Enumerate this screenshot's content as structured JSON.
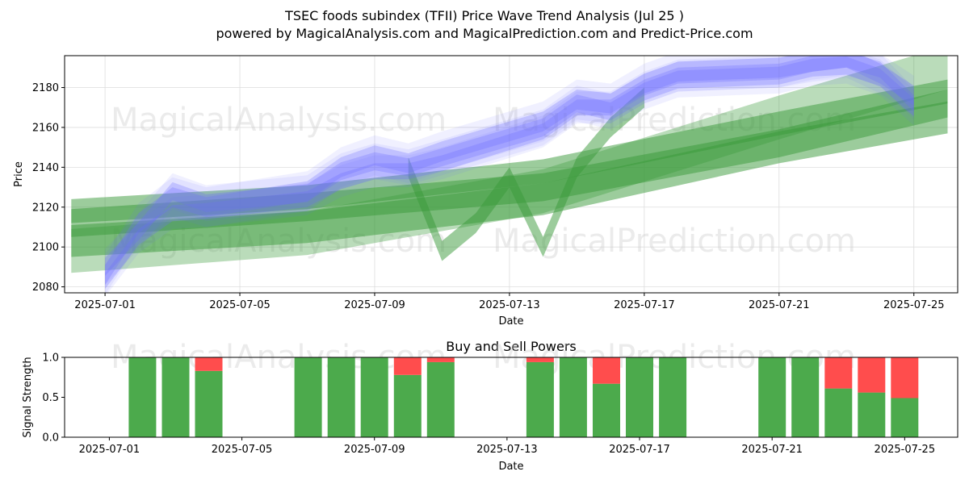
{
  "title": "TSEC foods subindex (TFII) Price Wave Trend Analysis (Jul 25 )",
  "subtitle": "powered by MagicalAnalysis.com and MagicalPrediction.com and Predict-Price.com",
  "watermarks": [
    "MagicalAnalysis.com",
    "MagicalPrediction.com"
  ],
  "colors": {
    "band_blue": "#6a6aff",
    "band_green": "#3a9a3a",
    "buy": "#4caa4c",
    "sell": "#ff4d4d",
    "grid": "#dddddd"
  },
  "chart_data": [
    {
      "type": "area",
      "name": "price-wave",
      "xlabel": "Date",
      "ylabel": "Price",
      "x_ticks": [
        "2025-07-01",
        "2025-07-05",
        "2025-07-09",
        "2025-07-13",
        "2025-07-17",
        "2025-07-21",
        "2025-07-25"
      ],
      "y_ticks": [
        2080,
        2100,
        2120,
        2140,
        2160,
        2180
      ],
      "xlim": [
        "2025-06-29.8",
        "2025-07-26.3"
      ],
      "ylim": [
        2077,
        2196
      ],
      "grid": true,
      "blue_bands": [
        {
          "x": [
            "2025-07-01",
            "2025-07-02",
            "2025-07-03",
            "2025-07-04",
            "2025-07-07",
            "2025-07-08",
            "2025-07-09",
            "2025-07-10",
            "2025-07-11",
            "2025-07-14",
            "2025-07-15",
            "2025-07-16",
            "2025-07-17",
            "2025-07-18",
            "2025-07-21",
            "2025-07-22",
            "2025-07-23",
            "2025-07-24",
            "2025-07-25"
          ],
          "center": [
            2083,
            2105,
            2117,
            2118,
            2124,
            2133,
            2138,
            2138,
            2142,
            2158,
            2170,
            2170,
            2180,
            2186,
            2188,
            2192,
            2194,
            2189,
            2172
          ],
          "width": 8
        },
        {
          "x": [
            "2025-07-01",
            "2025-07-02",
            "2025-07-03",
            "2025-07-04",
            "2025-07-07",
            "2025-07-08",
            "2025-07-09",
            "2025-07-10",
            "2025-07-11",
            "2025-07-14",
            "2025-07-15",
            "2025-07-16",
            "2025-07-17",
            "2025-07-18",
            "2025-07-21",
            "2025-07-22",
            "2025-07-23",
            "2025-07-24",
            "2025-07-25"
          ],
          "center": [
            2086,
            2112,
            2125,
            2120,
            2128,
            2140,
            2146,
            2142,
            2148,
            2163,
            2174,
            2172,
            2182,
            2188,
            2190,
            2193,
            2195,
            2187,
            2176
          ],
          "width": 10
        },
        {
          "x": [
            "2025-07-01",
            "2025-07-02",
            "2025-07-03",
            "2025-07-04",
            "2025-07-07",
            "2025-07-08",
            "2025-07-09",
            "2025-07-10",
            "2025-07-11",
            "2025-07-14",
            "2025-07-15",
            "2025-07-16",
            "2025-07-17",
            "2025-07-18",
            "2025-07-21",
            "2025-07-22",
            "2025-07-23",
            "2025-07-24",
            "2025-07-25"
          ],
          "center": [
            2090,
            2108,
            2128,
            2122,
            2127,
            2138,
            2143,
            2140,
            2145,
            2160,
            2172,
            2168,
            2178,
            2184,
            2186,
            2190,
            2191,
            2185,
            2170
          ],
          "width": 9
        }
      ],
      "green_bands": [
        {
          "x": [
            "2025-06-30",
            "2025-07-07",
            "2025-07-14",
            "2025-07-21",
            "2025-07-26"
          ],
          "center": [
            2112,
            2120,
            2130,
            2152,
            2172
          ],
          "width": 14
        },
        {
          "x": [
            "2025-06-30",
            "2025-07-07",
            "2025-07-14",
            "2025-07-21",
            "2025-07-26"
          ],
          "center": [
            2103,
            2110,
            2124,
            2150,
            2165
          ],
          "width": 16
        },
        {
          "x": [
            "2025-06-30",
            "2025-07-07",
            "2025-07-14",
            "2025-07-21",
            "2025-07-26"
          ],
          "center": [
            2098,
            2107,
            2128,
            2165,
            2190
          ],
          "width": 22
        },
        {
          "x": [
            "2025-06-30",
            "2025-07-07",
            "2025-07-14",
            "2025-07-21",
            "2025-07-26"
          ],
          "center": [
            2118,
            2125,
            2138,
            2162,
            2178
          ],
          "width": 12
        },
        {
          "x": [
            "2025-07-10",
            "2025-07-11",
            "2025-07-12",
            "2025-07-13",
            "2025-07-14",
            "2025-07-15",
            "2025-07-16",
            "2025-07-17"
          ],
          "center": [
            2140,
            2098,
            2112,
            2135,
            2100,
            2140,
            2160,
            2175
          ],
          "width": 10
        }
      ]
    },
    {
      "type": "bar",
      "name": "buy-sell-powers",
      "title": "Buy and Sell Powers",
      "xlabel": "Date",
      "ylabel": "Signal Strength",
      "x_ticks": [
        "2025-07-01",
        "2025-07-05",
        "2025-07-09",
        "2025-07-13",
        "2025-07-17",
        "2025-07-21",
        "2025-07-25"
      ],
      "y_ticks": [
        "0.0",
        "0.5",
        "1.0"
      ],
      "ylim": [
        0,
        1
      ],
      "series": [
        {
          "name": "buy",
          "x": [
            "2025-07-02",
            "2025-07-03",
            "2025-07-04",
            "2025-07-07",
            "2025-07-08",
            "2025-07-09",
            "2025-07-10",
            "2025-07-11",
            "2025-07-14",
            "2025-07-15",
            "2025-07-16",
            "2025-07-17",
            "2025-07-18",
            "2025-07-21",
            "2025-07-22",
            "2025-07-23",
            "2025-07-24",
            "2025-07-25"
          ],
          "values": [
            1.0,
            1.0,
            0.83,
            1.0,
            1.0,
            1.0,
            0.78,
            0.94,
            0.94,
            1.0,
            0.67,
            1.0,
            1.0,
            1.0,
            1.0,
            0.61,
            0.56,
            0.49
          ]
        },
        {
          "name": "sell",
          "x": [
            "2025-07-02",
            "2025-07-03",
            "2025-07-04",
            "2025-07-07",
            "2025-07-08",
            "2025-07-09",
            "2025-07-10",
            "2025-07-11",
            "2025-07-14",
            "2025-07-15",
            "2025-07-16",
            "2025-07-17",
            "2025-07-18",
            "2025-07-21",
            "2025-07-22",
            "2025-07-23",
            "2025-07-24",
            "2025-07-25"
          ],
          "values": [
            0.0,
            0.0,
            0.17,
            0.0,
            0.0,
            0.0,
            0.22,
            0.06,
            0.06,
            0.0,
            0.33,
            0.0,
            0.0,
            0.0,
            0.0,
            0.39,
            0.44,
            0.51
          ]
        }
      ]
    }
  ]
}
